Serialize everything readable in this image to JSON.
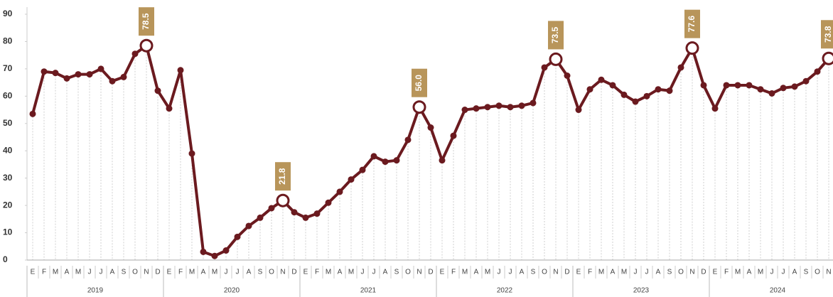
{
  "chart_data": {
    "type": "line",
    "categories": [
      "E",
      "F",
      "M",
      "A",
      "M",
      "J",
      "J",
      "A",
      "S",
      "O",
      "N",
      "D",
      "E",
      "F",
      "M",
      "A",
      "M",
      "J",
      "J",
      "A",
      "S",
      "O",
      "N",
      "D",
      "E",
      "F",
      "M",
      "A",
      "M",
      "J",
      "J",
      "A",
      "S",
      "O",
      "N",
      "D",
      "E",
      "F",
      "M",
      "A",
      "M",
      "J",
      "J",
      "A",
      "S",
      "O",
      "N",
      "D",
      "E",
      "F",
      "M",
      "A",
      "M",
      "J",
      "J",
      "A",
      "S",
      "O",
      "N",
      "D",
      "E",
      "F",
      "M",
      "A",
      "M",
      "J",
      "J",
      "A",
      "S",
      "O",
      "N"
    ],
    "years": [
      "2019",
      "2020",
      "2021",
      "2022",
      "2023",
      "2024"
    ],
    "series": [
      {
        "color": "#6b1a1f",
        "values": [
          53.5,
          69,
          68.5,
          66.5,
          68,
          68,
          70,
          65.5,
          67,
          75.5,
          78.5,
          62,
          55.5,
          69.5,
          39,
          3,
          1.5,
          3.5,
          8.5,
          12.5,
          15.5,
          19,
          21.8,
          17.5,
          15.5,
          17,
          21,
          25,
          29.5,
          33,
          38,
          36,
          36.5,
          44,
          56.0,
          48.5,
          36.5,
          45.5,
          55,
          55.5,
          56,
          56.5,
          56,
          56.5,
          57.5,
          70.5,
          73.5,
          67.5,
          55,
          62.5,
          66,
          64,
          60.5,
          58,
          60,
          62.5,
          62,
          70.5,
          77.6,
          64,
          55.5,
          64,
          64,
          64,
          62.5,
          61,
          63,
          63.5,
          65.5,
          69,
          73.8
        ],
        "value_labels": [
          null,
          null,
          null,
          null,
          null,
          null,
          null,
          null,
          null,
          null,
          "78.5",
          null,
          null,
          null,
          null,
          null,
          null,
          null,
          null,
          null,
          null,
          null,
          "21.8",
          null,
          null,
          null,
          null,
          null,
          null,
          null,
          null,
          null,
          null,
          null,
          "56.0",
          null,
          null,
          null,
          null,
          null,
          null,
          null,
          null,
          null,
          null,
          null,
          "73.5",
          null,
          null,
          null,
          null,
          null,
          null,
          null,
          null,
          null,
          null,
          null,
          "77.6",
          null,
          null,
          null,
          null,
          null,
          null,
          null,
          null,
          null,
          null,
          null,
          "73.8"
        ]
      }
    ],
    "label_color": "#b8955a",
    "ylim": [
      0,
      90
    ],
    "yticks": [
      0,
      10,
      20,
      30,
      40,
      50,
      60,
      70,
      80,
      90
    ]
  }
}
